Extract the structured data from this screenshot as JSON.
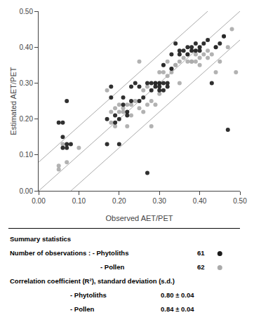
{
  "chart_data": {
    "type": "scatter",
    "xlabel": "Observed AET/PET",
    "ylabel": "Estimated AET/PET",
    "xlim": [
      0.0,
      0.5
    ],
    "ylim": [
      0.0,
      0.5
    ],
    "xticks": [
      {
        "value": 0.0,
        "label": "0.00"
      },
      {
        "value": 0.1,
        "label": "0.10"
      },
      {
        "value": 0.2,
        "label": "0.20"
      },
      {
        "value": 0.3,
        "label": "0.30"
      },
      {
        "value": 0.4,
        "label": "0.40"
      },
      {
        "value": 0.5,
        "label": "0.50"
      }
    ],
    "yticks": [
      {
        "value": 0.0,
        "label": "0.00"
      },
      {
        "value": 0.1,
        "label": "0.10"
      },
      {
        "value": 0.2,
        "label": "0.20"
      },
      {
        "value": 0.3,
        "label": "0.30"
      },
      {
        "value": 0.4,
        "label": "0.40"
      },
      {
        "value": 0.5,
        "label": "0.50"
      }
    ],
    "grid": false,
    "series": [
      {
        "color": "#aaaaaa",
        "marker": "circle",
        "x": [
          0.05,
          0.05,
          0.06,
          0.07,
          0.1,
          0.17,
          0.18,
          0.18,
          0.19,
          0.19,
          0.2,
          0.2,
          0.21,
          0.21,
          0.22,
          0.22,
          0.23,
          0.23,
          0.24,
          0.25,
          0.25,
          0.26,
          0.26,
          0.27,
          0.27,
          0.28,
          0.28,
          0.29,
          0.29,
          0.3,
          0.3,
          0.3,
          0.31,
          0.31,
          0.32,
          0.32,
          0.33,
          0.33,
          0.34,
          0.34,
          0.35,
          0.35,
          0.36,
          0.37,
          0.37,
          0.38,
          0.38,
          0.39,
          0.39,
          0.4,
          0.4,
          0.41,
          0.42,
          0.42,
          0.43,
          0.44,
          0.44,
          0.45,
          0.46,
          0.47,
          0.48,
          0.49
        ],
        "y": [
          0.07,
          0.06,
          0.13,
          0.08,
          0.12,
          0.28,
          0.19,
          0.22,
          0.23,
          0.18,
          0.22,
          0.24,
          0.22,
          0.23,
          0.18,
          0.24,
          0.24,
          0.21,
          0.25,
          0.23,
          0.36,
          0.22,
          0.28,
          0.24,
          0.29,
          0.25,
          0.18,
          0.24,
          0.3,
          0.3,
          0.33,
          0.27,
          0.35,
          0.33,
          0.32,
          0.36,
          0.33,
          0.34,
          0.35,
          0.35,
          0.36,
          0.3,
          0.37,
          0.36,
          0.38,
          0.36,
          0.36,
          0.38,
          0.36,
          0.37,
          0.35,
          0.38,
          0.39,
          0.37,
          0.38,
          0.33,
          0.4,
          0.36,
          0.43,
          0.4,
          0.45,
          0.33
        ]
      },
      {
        "color": "#1a1a1a",
        "marker": "circle",
        "x": [
          0.05,
          0.06,
          0.06,
          0.06,
          0.07,
          0.07,
          0.07,
          0.08,
          0.17,
          0.17,
          0.18,
          0.18,
          0.19,
          0.19,
          0.2,
          0.2,
          0.21,
          0.21,
          0.22,
          0.22,
          0.23,
          0.23,
          0.24,
          0.25,
          0.25,
          0.26,
          0.27,
          0.27,
          0.28,
          0.28,
          0.29,
          0.29,
          0.3,
          0.3,
          0.3,
          0.31,
          0.31,
          0.31,
          0.32,
          0.32,
          0.33,
          0.33,
          0.34,
          0.35,
          0.35,
          0.36,
          0.37,
          0.37,
          0.38,
          0.38,
          0.39,
          0.39,
          0.4,
          0.4,
          0.41,
          0.42,
          0.43,
          0.44,
          0.45,
          0.46,
          0.47
        ],
        "y": [
          0.19,
          0.12,
          0.15,
          0.19,
          0.12,
          0.13,
          0.25,
          0.13,
          0.2,
          0.13,
          0.26,
          0.29,
          0.19,
          0.21,
          0.13,
          0.2,
          0.24,
          0.26,
          0.21,
          0.22,
          0.25,
          0.29,
          0.3,
          0.29,
          0.25,
          0.26,
          0.05,
          0.3,
          0.28,
          0.3,
          0.3,
          0.29,
          0.28,
          0.29,
          0.3,
          0.35,
          0.28,
          0.3,
          0.29,
          0.3,
          0.34,
          0.38,
          0.41,
          0.39,
          0.38,
          0.39,
          0.4,
          0.38,
          0.39,
          0.4,
          0.39,
          0.41,
          0.4,
          0.39,
          0.41,
          0.42,
          0.3,
          0.4,
          0.41,
          0.43,
          0.17
        ]
      }
    ],
    "reference_lines": [
      {
        "color": "#aaaaaa",
        "x": [
          0.0,
          0.5
        ],
        "y": [
          0.0,
          0.5
        ]
      },
      {
        "color": "#aaaaaa",
        "x": [
          0.0,
          0.42
        ],
        "y": [
          0.08,
          0.5
        ]
      },
      {
        "color": "#aaaaaa",
        "x": [
          0.08,
          0.5
        ],
        "y": [
          0.0,
          0.42
        ]
      }
    ],
    "summary": {
      "title": "Summary statistics",
      "observations": {
        "label": "Number of observations : - Phytoliths",
        "pollen_label": "- Pollen",
        "counts": [
          61,
          62
        ]
      },
      "correlation": {
        "label": "Correlation coefficient (R²), standard deviation (s.d.)",
        "rows": [
          {
            "label": "- Phytoliths",
            "value": "0.80 ± 0.04"
          },
          {
            "label": "- Pollen",
            "value": "0.84 ± 0.04"
          }
        ]
      }
    }
  }
}
